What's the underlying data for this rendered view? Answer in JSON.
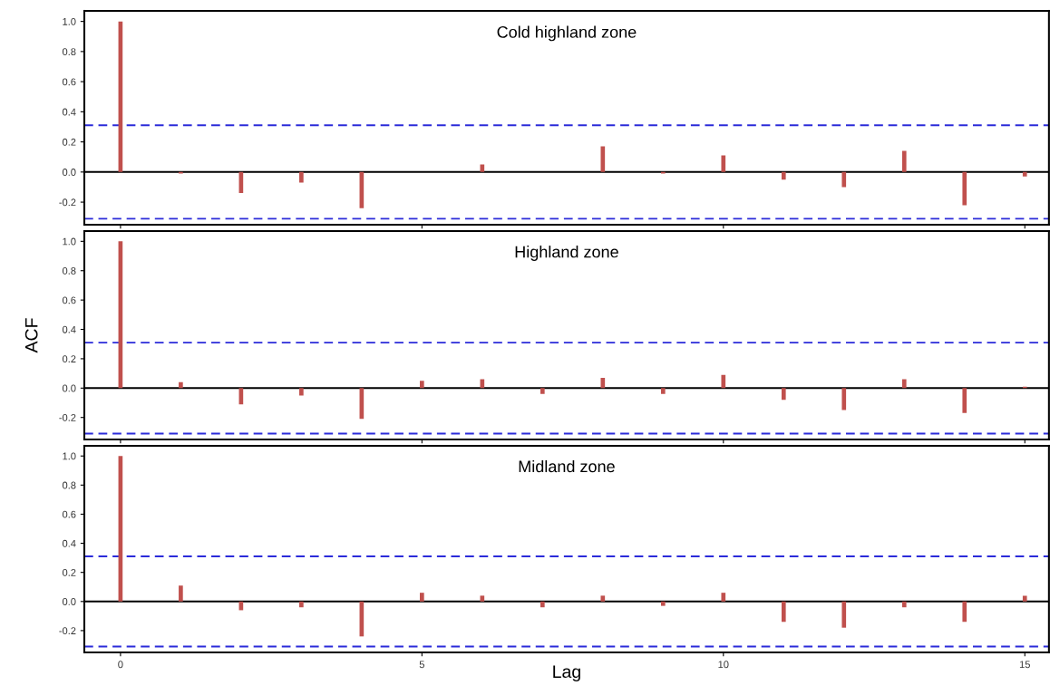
{
  "chart_data": [
    {
      "type": "bar",
      "title": "Cold highland zone",
      "x": [
        0,
        1,
        2,
        3,
        4,
        5,
        6,
        7,
        8,
        9,
        10,
        11,
        12,
        13,
        14,
        15
      ],
      "series": [
        {
          "color": "#c0504d",
          "values": [
            1.0,
            -0.01,
            -0.14,
            -0.07,
            -0.24,
            0.0,
            0.05,
            0.0,
            0.17,
            -0.01,
            0.11,
            -0.05,
            -0.1,
            0.14,
            -0.22,
            -0.03
          ]
        }
      ],
      "xlim": [
        -0.6,
        15.4
      ],
      "ylim": [
        -0.35,
        1.07
      ],
      "xticks": [
        0,
        5,
        10,
        15
      ],
      "yticks": [
        {
          "value": -0.2,
          "label": "-0.2"
        },
        {
          "value": 0.0,
          "label": "0.0"
        },
        {
          "value": 0.2,
          "label": "0.2"
        },
        {
          "value": 0.4,
          "label": "0.4"
        },
        {
          "value": 0.6,
          "label": "0.6"
        },
        {
          "value": 0.8,
          "label": "0.8"
        },
        {
          "value": 1.0,
          "label": "1.0"
        }
      ],
      "tick_labels": "y",
      "ref_lines": [
        {
          "axis": "y",
          "value": 0.31,
          "color": "#2b2bd9",
          "line_style": "dashed"
        },
        {
          "axis": "y",
          "value": -0.31,
          "color": "#2b2bd9",
          "line_style": "dashed"
        },
        {
          "axis": "y",
          "value": 0,
          "color": "#000000",
          "line_style": "solid"
        }
      ]
    },
    {
      "type": "bar",
      "title": "Highland zone",
      "ylabel": "ACF",
      "x": [
        0,
        1,
        2,
        3,
        4,
        5,
        6,
        7,
        8,
        9,
        10,
        11,
        12,
        13,
        14,
        15
      ],
      "series": [
        {
          "color": "#c0504d",
          "values": [
            1.0,
            0.04,
            -0.11,
            -0.05,
            -0.21,
            0.05,
            0.06,
            -0.04,
            0.07,
            -0.04,
            0.09,
            -0.08,
            -0.15,
            0.06,
            -0.17,
            0.01
          ]
        }
      ],
      "xlim": [
        -0.6,
        15.4
      ],
      "ylim": [
        -0.35,
        1.07
      ],
      "xticks": [
        0,
        5,
        10,
        15
      ],
      "yticks": [
        {
          "value": -0.2,
          "label": "-0.2"
        },
        {
          "value": 0.0,
          "label": "0.0"
        },
        {
          "value": 0.2,
          "label": "0.2"
        },
        {
          "value": 0.4,
          "label": "0.4"
        },
        {
          "value": 0.6,
          "label": "0.6"
        },
        {
          "value": 0.8,
          "label": "0.8"
        },
        {
          "value": 1.0,
          "label": "1.0"
        }
      ],
      "tick_labels": "y",
      "ref_lines": [
        {
          "axis": "y",
          "value": 0.31,
          "color": "#2b2bd9",
          "line_style": "dashed"
        },
        {
          "axis": "y",
          "value": -0.31,
          "color": "#2b2bd9",
          "line_style": "dashed"
        },
        {
          "axis": "y",
          "value": 0,
          "color": "#000000",
          "line_style": "solid"
        }
      ]
    },
    {
      "type": "bar",
      "title": "Midland zone",
      "xlabel": "Lag",
      "x": [
        0,
        1,
        2,
        3,
        4,
        5,
        6,
        7,
        8,
        9,
        10,
        11,
        12,
        13,
        14,
        15
      ],
      "series": [
        {
          "color": "#c0504d",
          "values": [
            1.0,
            0.11,
            -0.06,
            -0.04,
            -0.24,
            0.06,
            0.04,
            -0.04,
            0.04,
            -0.03,
            0.06,
            -0.14,
            -0.18,
            -0.04,
            -0.14,
            0.04
          ]
        }
      ],
      "xlim": [
        -0.6,
        15.4
      ],
      "ylim": [
        -0.35,
        1.07
      ],
      "xticks": [
        0,
        5,
        10,
        15
      ],
      "yticks": [
        {
          "value": -0.2,
          "label": "-0.2"
        },
        {
          "value": 0.0,
          "label": "0.0"
        },
        {
          "value": 0.2,
          "label": "0.2"
        },
        {
          "value": 0.4,
          "label": "0.4"
        },
        {
          "value": 0.6,
          "label": "0.6"
        },
        {
          "value": 0.8,
          "label": "0.8"
        },
        {
          "value": 1.0,
          "label": "1.0"
        }
      ],
      "ref_lines": [
        {
          "axis": "y",
          "value": 0.31,
          "color": "#2b2bd9",
          "line_style": "dashed"
        },
        {
          "axis": "y",
          "value": -0.31,
          "color": "#2b2bd9",
          "line_style": "dashed"
        },
        {
          "axis": "y",
          "value": 0,
          "color": "#000000",
          "line_style": "solid"
        }
      ]
    }
  ]
}
